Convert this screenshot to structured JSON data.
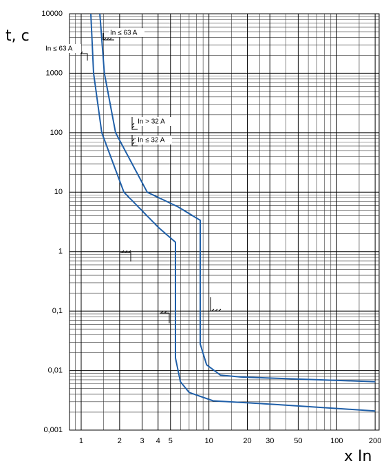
{
  "chart_data": {
    "type": "line",
    "y_label": "t, c",
    "x_label": "x In",
    "xscale": "log",
    "yscale": "log",
    "xlim": [
      0.81,
      215
    ],
    "ylim": [
      0.001,
      10000
    ],
    "xticks": [
      1,
      2,
      3,
      4,
      5,
      10,
      20,
      30,
      50,
      100,
      200
    ],
    "yticks": [
      10000,
      1000,
      100,
      10,
      1,
      {
        "value": 0.1,
        "label": "0,1"
      },
      {
        "value": 0.01,
        "label": "0,01"
      },
      {
        "value": 0.001,
        "label": "0,001"
      }
    ],
    "xminor": [
      0.9,
      1.5,
      6,
      7,
      8,
      9,
      15,
      25,
      40,
      60,
      70,
      80,
      90,
      150
    ],
    "yminor": [
      0.002,
      0.003,
      0.004,
      0.005,
      0.006,
      0.007,
      0.008,
      0.009,
      0.02,
      0.03,
      0.04,
      0.05,
      0.06,
      0.07,
      0.08,
      0.09,
      0.2,
      0.3,
      0.4,
      0.5,
      0.6,
      0.7,
      0.8,
      0.9,
      2,
      3,
      4,
      5,
      6,
      7,
      8,
      9,
      20,
      30,
      40,
      50,
      60,
      70,
      80,
      90,
      200,
      300,
      400,
      500,
      600,
      700,
      800,
      900,
      2000,
      3000,
      4000,
      5000,
      6000,
      7000,
      8000,
      9000
    ],
    "grid": true,
    "annotations": [
      "In ≤ 63 A",
      "In ≤ 63 A",
      "In > 32 A",
      "In ≤ 32 A"
    ],
    "series": [
      {
        "color": "#1f5fa8",
        "x": [
          1.19,
          1.25,
          1.45,
          2.16,
          4.0,
          5.47,
          5.47,
          5.98,
          7.0,
          10.8,
          33,
          200
        ],
        "values": [
          10000,
          1000,
          100,
          10,
          2.58,
          1.44,
          0.0163,
          0.0065,
          0.0043,
          0.0031,
          0.0027,
          0.0021
        ]
      },
      {
        "color": "#1f5fa8",
        "x": [
          1.4,
          1.52,
          1.86,
          3.29,
          5.7,
          8.55,
          8.55,
          9.6,
          12.3,
          17.8,
          200
        ],
        "values": [
          10000,
          1000,
          100,
          10,
          5.7,
          3.37,
          0.028,
          0.0125,
          0.0084,
          0.0078,
          0.0065
        ]
      }
    ]
  }
}
